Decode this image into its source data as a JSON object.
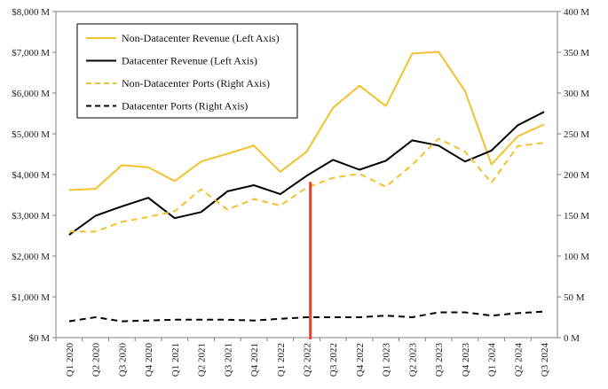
{
  "colors": {
    "gold": "#F2C12E",
    "black": "#000000",
    "marker": "#E8412E",
    "axis": "#7f7f7f"
  },
  "chart_data": {
    "type": "line",
    "title": "",
    "xlabel": "",
    "ylabel": "",
    "ylabel_right": "",
    "categories": [
      "Q1 2020",
      "Q2 2020",
      "Q3 2020",
      "Q4 2020",
      "Q1 2021",
      "Q2 2021",
      "Q3 2021",
      "Q4 2021",
      "Q1 2022",
      "Q2 2022",
      "Q3 2022",
      "Q4 2022",
      "Q1 2023",
      "Q2 2023",
      "Q3 2023",
      "Q4 2023",
      "Q1 2024",
      "Q2 2024",
      "Q3 2024"
    ],
    "ylim": [
      0,
      8000
    ],
    "ylim_right": [
      0,
      400
    ],
    "yticks": [
      "$0 M",
      "$1,000 M",
      "$2,000 M",
      "$3,000 M",
      "$4,000 M",
      "$5,000 M",
      "$6,000 M",
      "$7,000 M",
      "$8,000 M"
    ],
    "yticks_right": [
      "0 M",
      "50 M",
      "100 M",
      "150 M",
      "200 M",
      "250 M",
      "300 M",
      "350 M",
      "400 M"
    ],
    "legend_position": "top-left",
    "marker_category": "Q2 2022",
    "series": [
      {
        "name": "Non-Datacenter Revenue (Left Axis)",
        "axis": "left",
        "style": "solid",
        "color": "gold",
        "values": [
          3620,
          3650,
          4230,
          4180,
          3840,
          4320,
          4510,
          4710,
          4070,
          4560,
          5640,
          6180,
          5680,
          6970,
          7010,
          6050,
          4250,
          4940,
          5230
        ]
      },
      {
        "name": "Datacenter Revenue (Left Axis)",
        "axis": "left",
        "style": "solid",
        "color": "black",
        "values": [
          2520,
          2990,
          3220,
          3430,
          2930,
          3080,
          3590,
          3740,
          3520,
          3970,
          4360,
          4120,
          4340,
          4840,
          4710,
          4320,
          4590,
          5210,
          5540
        ]
      },
      {
        "name": "Non-Datacenter Ports (Right Axis)",
        "axis": "right",
        "style": "dashed",
        "color": "gold",
        "values": [
          130,
          130,
          142,
          148,
          155,
          182,
          157,
          170,
          162,
          184,
          196,
          201,
          185,
          212,
          244,
          228,
          190,
          235,
          239
        ]
      },
      {
        "name": "Datacenter Ports (Right Axis)",
        "axis": "right",
        "style": "dashed",
        "color": "black",
        "values": [
          20,
          25,
          20,
          21,
          22,
          22,
          22,
          21,
          23,
          25,
          25,
          25,
          27,
          25,
          31,
          31,
          27,
          30,
          32
        ]
      }
    ]
  }
}
